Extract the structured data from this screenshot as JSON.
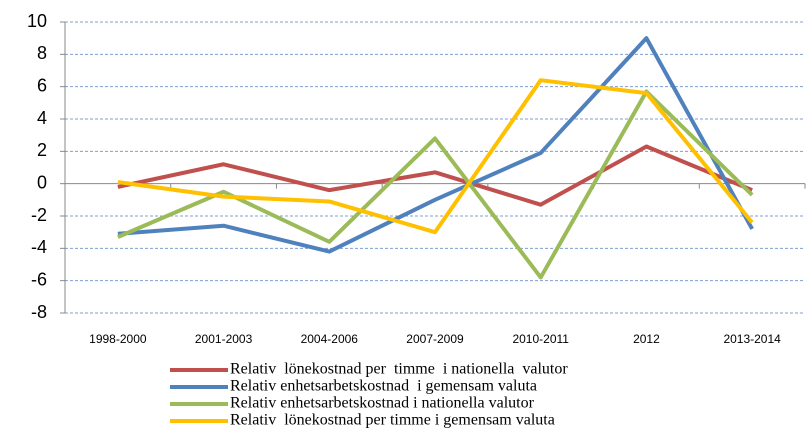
{
  "chart_data": {
    "type": "line",
    "categories": [
      "1998-2000",
      "2001-2003",
      "2004-2006",
      "2007-2009",
      "2010-2011",
      "2012",
      "2013-2014"
    ],
    "series": [
      {
        "name": "Relativ  lönekostnad per  timme  i nationella  valutor",
        "color": "#c0504d",
        "values": [
          -0.2,
          1.2,
          -0.4,
          0.7,
          -1.3,
          2.3,
          -0.4
        ]
      },
      {
        "name": "Relativ enhetsarbetskostnad  i gemensam valuta",
        "color": "#4f81bd",
        "values": [
          -3.1,
          -2.6,
          -4.2,
          -1.0,
          1.9,
          9.0,
          -2.8
        ]
      },
      {
        "name": "Relativ enhetsarbetskostnad i nationella valutor",
        "color": "#9bbb59",
        "values": [
          -3.3,
          -0.5,
          -3.6,
          2.8,
          -5.8,
          5.7,
          -0.7
        ]
      },
      {
        "name": "Relativ  lönekostnad per timme i gemensam valuta",
        "color": "#ffc000",
        "values": [
          0.1,
          -0.8,
          -1.1,
          -3.0,
          6.4,
          5.6,
          -2.4
        ]
      }
    ],
    "ylim": [
      -8,
      10
    ],
    "yticks": [
      -8,
      -6,
      -4,
      -2,
      0,
      2,
      4,
      6,
      8,
      10
    ],
    "grid": true
  }
}
